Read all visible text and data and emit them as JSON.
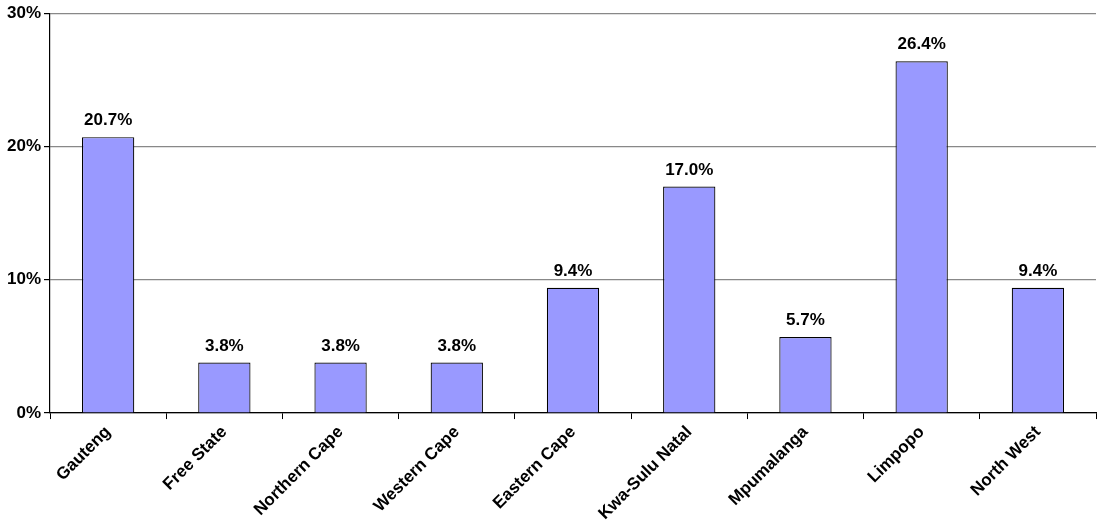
{
  "chart_data": {
    "type": "bar",
    "categories": [
      "Gauteng",
      "Free State",
      "Northern Cape",
      "Western Cape",
      "Eastern Cape",
      "Kwa-Sulu Natal",
      "Mpumalanga",
      "Limpopo",
      "North West"
    ],
    "values": [
      20.7,
      3.8,
      3.8,
      3.8,
      9.4,
      17.0,
      5.7,
      26.4,
      9.4
    ],
    "value_labels": [
      "20.7%",
      "3.8%",
      "3.8%",
      "3.8%",
      "9.4%",
      "17.0%",
      "5.7%",
      "26.4%",
      "9.4%"
    ],
    "color": "#9999ff",
    "ylim": [
      0,
      30
    ],
    "yticks": [
      {
        "value": 0,
        "label": "0%"
      },
      {
        "value": 10,
        "label": "10%"
      },
      {
        "value": 20,
        "label": "20%"
      },
      {
        "value": 30,
        "label": "30%"
      }
    ],
    "grid": "y",
    "legend": false
  }
}
